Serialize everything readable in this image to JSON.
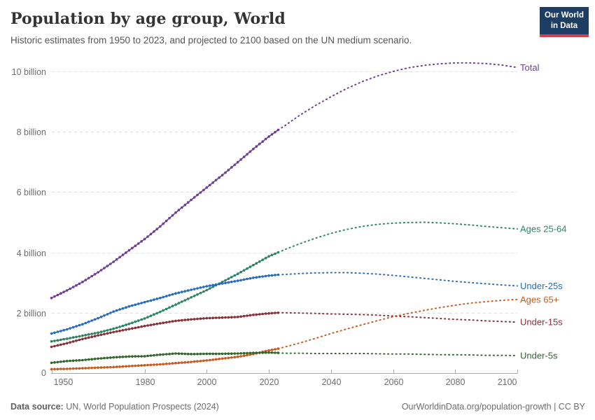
{
  "header": {
    "title": "Population by age group, World",
    "subtitle": "Historic estimates from 1950 to 2023, and projected to 2100 based on the UN medium scenario.",
    "logo": {
      "line1": "Our World",
      "line2": "in Data",
      "bg_color": "#1d3d63",
      "accent_color": "#d73c4c"
    }
  },
  "footer": {
    "datasource_label": "Data source:",
    "datasource_value": " UN, World Population Prospects (2024)",
    "attribution": "OurWorldinData.org/population-growth | CC BY"
  },
  "chart_data": {
    "type": "line",
    "title": "Population by age group, World",
    "xlabel": "",
    "ylabel": "",
    "xlim": [
      1950,
      2100
    ],
    "ylim": [
      0,
      10.6
    ],
    "grid": "dashed-horizontal",
    "legend_position": "right-edge-labels",
    "historic_end_year": 2023,
    "y_zero_label": "0",
    "y_ticks": [
      {
        "value": 2,
        "label": "2 billion"
      },
      {
        "value": 4,
        "label": "4 billion"
      },
      {
        "value": 6,
        "label": "6 billion"
      },
      {
        "value": 8,
        "label": "8 billion"
      },
      {
        "value": 10,
        "label": "10 billion"
      }
    ],
    "x_ticks": [
      {
        "year": 1950,
        "label": "1950"
      },
      {
        "year": 1980,
        "label": "1980"
      },
      {
        "year": 2000,
        "label": "2000"
      },
      {
        "year": 2020,
        "label": "2020"
      },
      {
        "year": 2040,
        "label": "2040"
      },
      {
        "year": 2060,
        "label": "2060"
      },
      {
        "year": 2080,
        "label": "2080"
      },
      {
        "year": 2100,
        "label": "2100"
      }
    ],
    "series": [
      {
        "name": "total",
        "label": "Total",
        "color": "#6d3e91",
        "historic": [
          [
            1950,
            2.49
          ],
          [
            1955,
            2.74
          ],
          [
            1960,
            3.02
          ],
          [
            1965,
            3.34
          ],
          [
            1970,
            3.69
          ],
          [
            1975,
            4.07
          ],
          [
            1980,
            4.44
          ],
          [
            1985,
            4.86
          ],
          [
            1990,
            5.32
          ],
          [
            1995,
            5.74
          ],
          [
            2000,
            6.15
          ],
          [
            2005,
            6.56
          ],
          [
            2010,
            6.99
          ],
          [
            2015,
            7.43
          ],
          [
            2020,
            7.84
          ],
          [
            2023,
            8.06
          ]
        ],
        "projection": [
          [
            2023,
            8.06
          ],
          [
            2025,
            8.19
          ],
          [
            2030,
            8.55
          ],
          [
            2035,
            8.87
          ],
          [
            2040,
            9.16
          ],
          [
            2045,
            9.43
          ],
          [
            2050,
            9.66
          ],
          [
            2055,
            9.85
          ],
          [
            2060,
            10.0
          ],
          [
            2065,
            10.12
          ],
          [
            2070,
            10.2
          ],
          [
            2075,
            10.25
          ],
          [
            2080,
            10.28
          ],
          [
            2085,
            10.28
          ],
          [
            2090,
            10.26
          ],
          [
            2095,
            10.21
          ],
          [
            2100,
            10.13
          ]
        ]
      },
      {
        "name": "ages-25-64",
        "label": "Ages 25-64",
        "color": "#2c8465",
        "historic": [
          [
            1950,
            1.05
          ],
          [
            1955,
            1.14
          ],
          [
            1960,
            1.24
          ],
          [
            1965,
            1.34
          ],
          [
            1970,
            1.47
          ],
          [
            1975,
            1.63
          ],
          [
            1980,
            1.81
          ],
          [
            1985,
            2.03
          ],
          [
            1990,
            2.27
          ],
          [
            1995,
            2.51
          ],
          [
            2000,
            2.75
          ],
          [
            2005,
            3.02
          ],
          [
            2010,
            3.29
          ],
          [
            2015,
            3.58
          ],
          [
            2020,
            3.87
          ],
          [
            2023,
            4.0
          ]
        ],
        "projection": [
          [
            2023,
            4.0
          ],
          [
            2025,
            4.09
          ],
          [
            2030,
            4.29
          ],
          [
            2035,
            4.47
          ],
          [
            2040,
            4.63
          ],
          [
            2045,
            4.76
          ],
          [
            2050,
            4.86
          ],
          [
            2055,
            4.93
          ],
          [
            2060,
            4.97
          ],
          [
            2065,
            4.99
          ],
          [
            2070,
            5.0
          ],
          [
            2075,
            4.98
          ],
          [
            2080,
            4.95
          ],
          [
            2085,
            4.91
          ],
          [
            2090,
            4.86
          ],
          [
            2095,
            4.82
          ],
          [
            2100,
            4.78
          ]
        ]
      },
      {
        "name": "under-25s",
        "label": "Under-25s",
        "color": "#286bbb",
        "historic": [
          [
            1950,
            1.31
          ],
          [
            1955,
            1.45
          ],
          [
            1960,
            1.62
          ],
          [
            1965,
            1.82
          ],
          [
            1970,
            2.04
          ],
          [
            1975,
            2.21
          ],
          [
            1980,
            2.35
          ],
          [
            1985,
            2.49
          ],
          [
            1990,
            2.64
          ],
          [
            1995,
            2.76
          ],
          [
            2000,
            2.88
          ],
          [
            2005,
            2.97
          ],
          [
            2010,
            3.06
          ],
          [
            2015,
            3.16
          ],
          [
            2020,
            3.23
          ],
          [
            2023,
            3.26
          ]
        ],
        "projection": [
          [
            2023,
            3.26
          ],
          [
            2025,
            3.27
          ],
          [
            2030,
            3.3
          ],
          [
            2035,
            3.32
          ],
          [
            2040,
            3.33
          ],
          [
            2045,
            3.33
          ],
          [
            2050,
            3.31
          ],
          [
            2055,
            3.28
          ],
          [
            2060,
            3.24
          ],
          [
            2065,
            3.19
          ],
          [
            2070,
            3.14
          ],
          [
            2075,
            3.09
          ],
          [
            2080,
            3.04
          ],
          [
            2085,
            3.0
          ],
          [
            2090,
            2.96
          ],
          [
            2095,
            2.92
          ],
          [
            2100,
            2.89
          ]
        ]
      },
      {
        "name": "ages-65-plus",
        "label": "Ages 65+",
        "color": "#c9591d",
        "historic": [
          [
            1950,
            0.13
          ],
          [
            1955,
            0.14
          ],
          [
            1960,
            0.16
          ],
          [
            1965,
            0.18
          ],
          [
            1970,
            0.2
          ],
          [
            1975,
            0.23
          ],
          [
            1980,
            0.26
          ],
          [
            1985,
            0.29
          ],
          [
            1990,
            0.33
          ],
          [
            1995,
            0.37
          ],
          [
            2000,
            0.42
          ],
          [
            2005,
            0.48
          ],
          [
            2010,
            0.54
          ],
          [
            2015,
            0.63
          ],
          [
            2020,
            0.75
          ],
          [
            2023,
            0.81
          ]
        ],
        "projection": [
          [
            2023,
            0.81
          ],
          [
            2025,
            0.86
          ],
          [
            2030,
            1.0
          ],
          [
            2035,
            1.15
          ],
          [
            2040,
            1.31
          ],
          [
            2045,
            1.46
          ],
          [
            2050,
            1.6
          ],
          [
            2055,
            1.74
          ],
          [
            2060,
            1.87
          ],
          [
            2065,
            1.98
          ],
          [
            2070,
            2.08
          ],
          [
            2075,
            2.17
          ],
          [
            2080,
            2.25
          ],
          [
            2085,
            2.32
          ],
          [
            2090,
            2.37
          ],
          [
            2095,
            2.41
          ],
          [
            2100,
            2.44
          ]
        ]
      },
      {
        "name": "under-15s",
        "label": "Under-15s",
        "color": "#883039",
        "historic": [
          [
            1950,
            0.87
          ],
          [
            1955,
            0.99
          ],
          [
            1960,
            1.13
          ],
          [
            1965,
            1.25
          ],
          [
            1970,
            1.36
          ],
          [
            1975,
            1.46
          ],
          [
            1980,
            1.56
          ],
          [
            1985,
            1.65
          ],
          [
            1990,
            1.73
          ],
          [
            1995,
            1.78
          ],
          [
            2000,
            1.82
          ],
          [
            2005,
            1.84
          ],
          [
            2010,
            1.86
          ],
          [
            2015,
            1.93
          ],
          [
            2020,
            1.98
          ],
          [
            2023,
            2.0
          ]
        ],
        "projection": [
          [
            2023,
            2.0
          ],
          [
            2025,
            2.0
          ],
          [
            2030,
            1.99
          ],
          [
            2035,
            1.98
          ],
          [
            2040,
            1.96
          ],
          [
            2045,
            1.95
          ],
          [
            2050,
            1.94
          ],
          [
            2055,
            1.92
          ],
          [
            2060,
            1.89
          ],
          [
            2065,
            1.87
          ],
          [
            2070,
            1.84
          ],
          [
            2075,
            1.81
          ],
          [
            2080,
            1.78
          ],
          [
            2085,
            1.76
          ],
          [
            2090,
            1.73
          ],
          [
            2095,
            1.71
          ],
          [
            2100,
            1.69
          ]
        ]
      },
      {
        "name": "under-5s",
        "label": "Under-5s",
        "color": "#32662f",
        "historic": [
          [
            1950,
            0.34
          ],
          [
            1955,
            0.4
          ],
          [
            1960,
            0.43
          ],
          [
            1965,
            0.48
          ],
          [
            1970,
            0.52
          ],
          [
            1975,
            0.55
          ],
          [
            1980,
            0.56
          ],
          [
            1985,
            0.61
          ],
          [
            1990,
            0.65
          ],
          [
            1995,
            0.63
          ],
          [
            2000,
            0.64
          ],
          [
            2005,
            0.64
          ],
          [
            2010,
            0.65
          ],
          [
            2015,
            0.67
          ],
          [
            2020,
            0.68
          ],
          [
            2023,
            0.67
          ]
        ],
        "projection": [
          [
            2023,
            0.67
          ],
          [
            2025,
            0.66
          ],
          [
            2030,
            0.66
          ],
          [
            2035,
            0.65
          ],
          [
            2040,
            0.65
          ],
          [
            2045,
            0.65
          ],
          [
            2050,
            0.65
          ],
          [
            2055,
            0.64
          ],
          [
            2060,
            0.63
          ],
          [
            2065,
            0.63
          ],
          [
            2070,
            0.62
          ],
          [
            2075,
            0.61
          ],
          [
            2080,
            0.61
          ],
          [
            2085,
            0.6
          ],
          [
            2090,
            0.59
          ],
          [
            2095,
            0.59
          ],
          [
            2100,
            0.58
          ]
        ]
      }
    ]
  }
}
